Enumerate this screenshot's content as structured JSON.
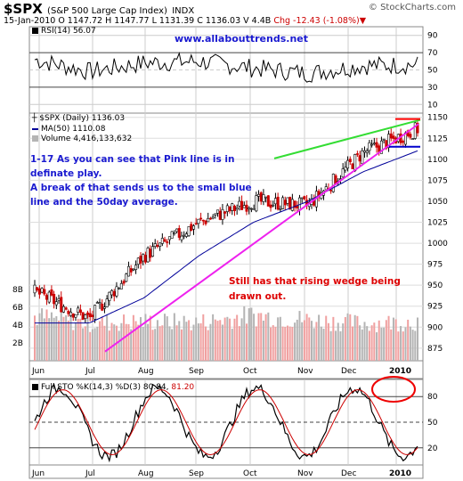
{
  "header": {
    "symbol": "$SPX",
    "name": "(S&P 500 Large Cap Index)",
    "exchange": "INDX",
    "quote_line": "15-Jan-2010      O 1147.72   H 1147.77   L 1131.39   C 1136.03   V 4.4B",
    "change": "Chg -12.43 (-1.08%)▼",
    "brand": "© StockCharts.com"
  },
  "rsi_panel": {
    "label": "RSI(14) 56.07",
    "ticks": [
      "90",
      "70",
      "50",
      "30",
      "10"
    ]
  },
  "price_panel": {
    "legend_price": "$SPX (Daily) 1136.03",
    "legend_ma": "MA(50) 1110.08",
    "legend_volume": "Volume 4,416,133,632",
    "yticks": [
      "1150",
      "1125",
      "1100",
      "1075",
      "1050",
      "1025",
      "1000",
      "975",
      "950",
      "925",
      "900",
      "875"
    ],
    "volume_ticks": [
      "8B",
      "6B",
      "4B",
      "2B"
    ],
    "url_text": "www.allabouttrends.net",
    "note_blue_1": "1-17 As you can see that Pink line is in definate play.",
    "note_blue_2": "A break of that sends us to the small blue line and the 50day average.",
    "note_red": "Still has that rising wedge being drawn out."
  },
  "sto_panel": {
    "label": "Full STO %K(14,3) %D(3) 80.84,",
    "label_d": "81.20",
    "ticks": [
      "80",
      "50",
      "20"
    ]
  },
  "x_labels": [
    "Jun",
    "Jul",
    "Aug",
    "Sep",
    "Oct",
    "Nov",
    "Dec",
    "2010"
  ],
  "colors": {
    "up": "#000000",
    "down": "#cc0000",
    "ma": "#000099",
    "trend_pink": "#ee22ee",
    "trend_green": "#33dd33",
    "red_line": "#ff0000",
    "blue_line": "#0000cc",
    "volume_up": "#b4b4b4",
    "volume_down": "#f0a0a0"
  },
  "chart_data": [
    {
      "type": "line",
      "title": "RSI(14)",
      "ylim": [
        0,
        100
      ],
      "x": [
        "Jun",
        "Jul",
        "Aug",
        "Sep",
        "Oct",
        "Nov",
        "Dec",
        "2010"
      ],
      "values": [
        62,
        48,
        58,
        60,
        52,
        46,
        55,
        56.07
      ],
      "last_value": 56.07
    },
    {
      "type": "line",
      "title": "$SPX (Daily)",
      "ylim": [
        860,
        1155
      ],
      "x": [
        "Jun",
        "Jul",
        "Aug",
        "Sep",
        "Oct",
        "Nov",
        "Dec",
        "2010"
      ],
      "series": [
        {
          "name": "$SPX (Daily)",
          "values": [
            942,
            910,
            985,
            1025,
            1050,
            1045,
            1108,
            1136.03
          ]
        },
        {
          "name": "MA(50)",
          "values": [
            905,
            905,
            935,
            985,
            1025,
            1050,
            1085,
            1110.08
          ]
        }
      ],
      "volume_values_B": [
        5.0,
        4.2,
        4.4,
        4.3,
        5.1,
        4.6,
        4.2,
        4.4
      ],
      "annotations": [
        {
          "label": "Pink trendline",
          "from": [
            "Jul",
            871
          ],
          "to": [
            "2010",
            1142
          ]
        },
        {
          "label": "Green trendline",
          "from": [
            "Oct",
            1101
          ],
          "to": [
            "2010",
            1147
          ]
        },
        {
          "label": "Red level",
          "value": 1148
        },
        {
          "label": "Blue level",
          "value": 1115
        }
      ]
    },
    {
      "type": "line",
      "title": "Full STO %K(14,3) %D(3)",
      "ylim": [
        0,
        100
      ],
      "x": [
        "Jun",
        "Jul",
        "Aug",
        "Sep",
        "Oct",
        "Nov",
        "Dec",
        "2010"
      ],
      "series": [
        {
          "name": "%K",
          "values": [
            80,
            20,
            85,
            30,
            85,
            30,
            80,
            80.84
          ]
        },
        {
          "name": "%D",
          "values": [
            82,
            25,
            82,
            35,
            82,
            35,
            78,
            81.2
          ]
        }
      ]
    }
  ]
}
